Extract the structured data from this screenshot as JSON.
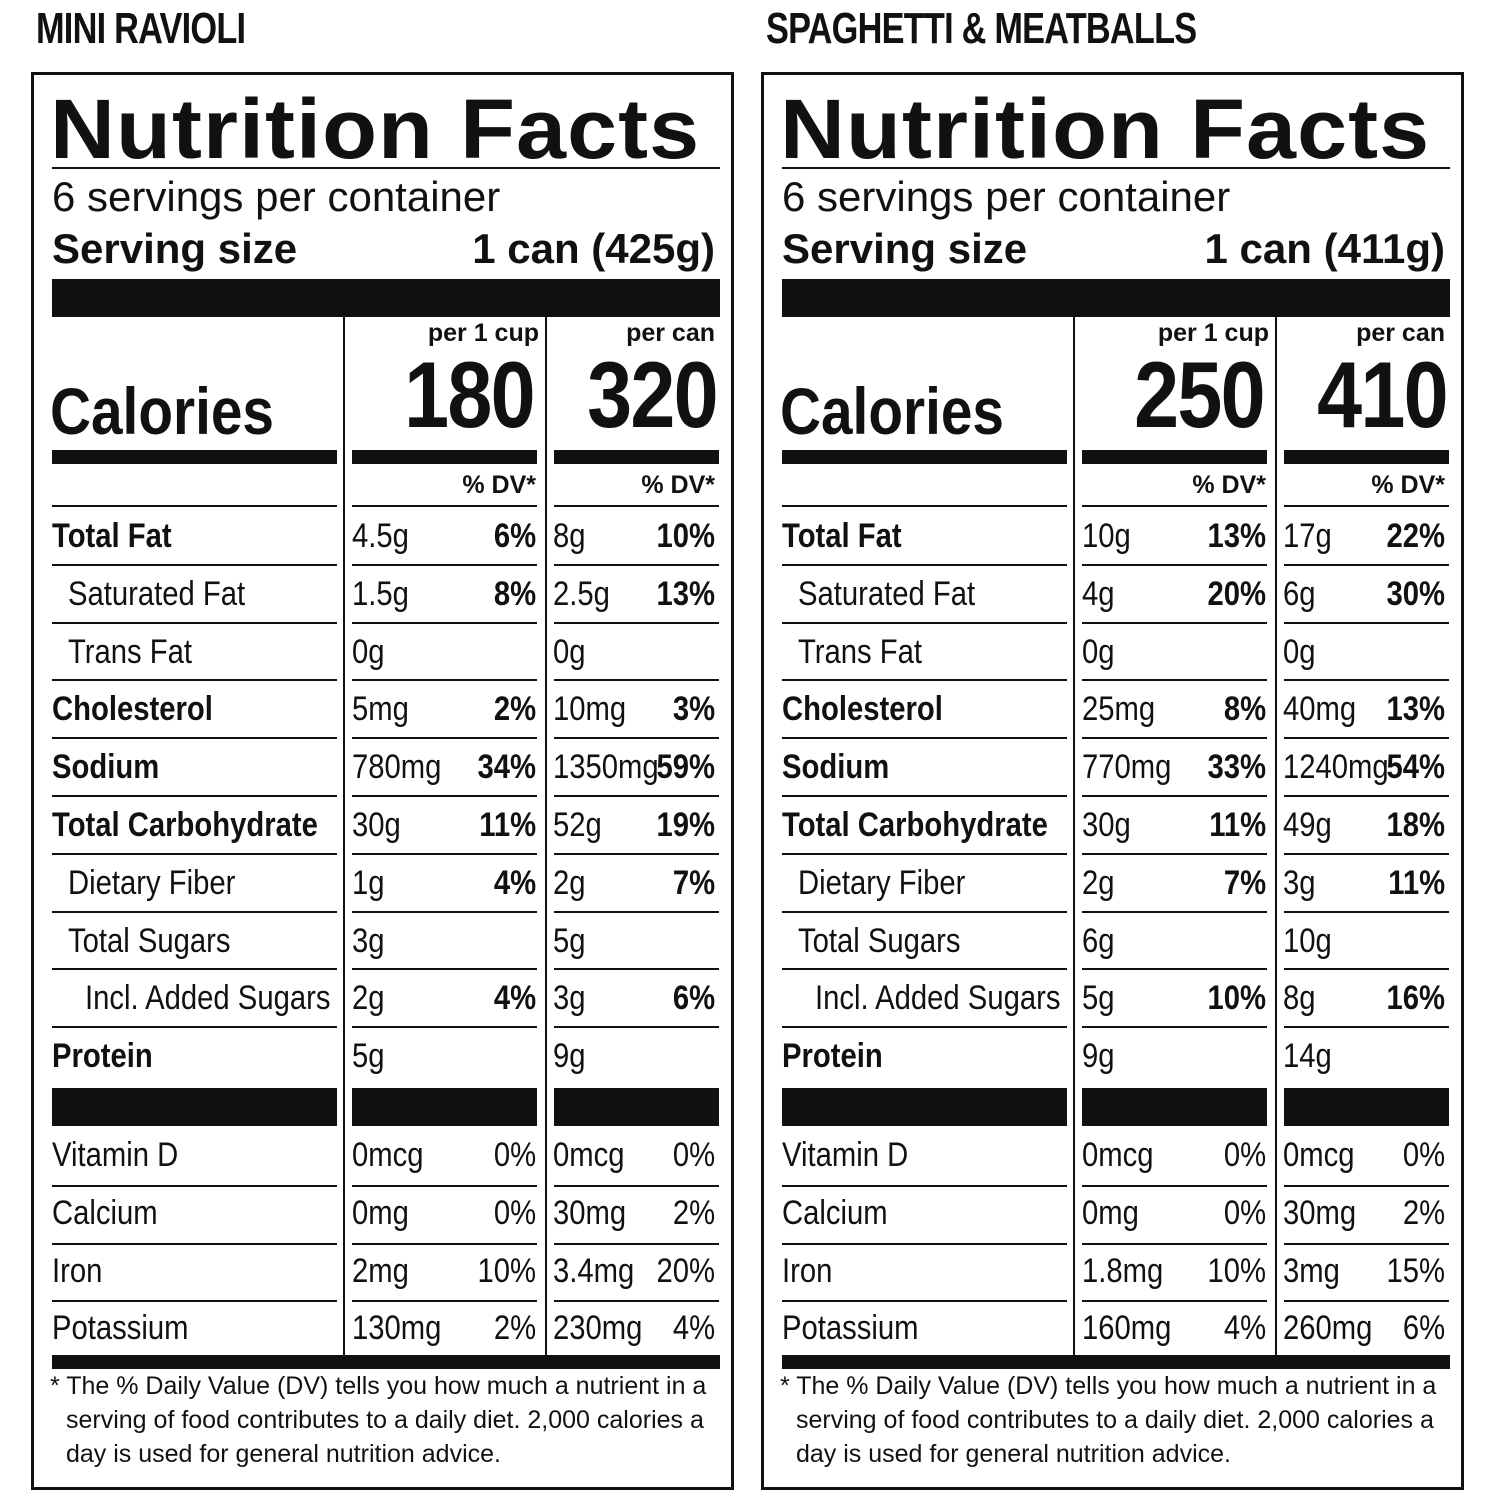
{
  "labels": [
    {
      "product_title": "MINI RAVIOLI",
      "heading": "Nutrition Facts",
      "servings_per_container": "6 servings per container",
      "serving_size_label": "Serving size",
      "serving_size_value": "1 can (425g)",
      "col1_header": "per 1 cup",
      "col2_header": "per can",
      "calories_label": "Calories",
      "calories_col1": "180",
      "calories_col2": "320",
      "dv_header": "% DV*",
      "nutrients": [
        {
          "name": "Total Fat",
          "bold": true,
          "indent": 0,
          "a1": "4.5g",
          "d1": "6%",
          "a2": "8g",
          "d2": "10%"
        },
        {
          "name": "Saturated Fat",
          "bold": false,
          "indent": 1,
          "a1": "1.5g",
          "d1": "8%",
          "a2": "2.5g",
          "d2": "13%"
        },
        {
          "name": "Trans Fat",
          "bold": false,
          "indent": 1,
          "a1": "0g",
          "d1": "",
          "a2": "0g",
          "d2": ""
        },
        {
          "name": "Cholesterol",
          "bold": true,
          "indent": 0,
          "a1": "5mg",
          "d1": "2%",
          "a2": "10mg",
          "d2": "3%"
        },
        {
          "name": "Sodium",
          "bold": true,
          "indent": 0,
          "a1": "780mg",
          "d1": "34%",
          "a2": "1350mg",
          "d2": "59%"
        },
        {
          "name": "Total Carbohydrate",
          "bold": true,
          "indent": 0,
          "a1": "30g",
          "d1": "11%",
          "a2": "52g",
          "d2": "19%"
        },
        {
          "name": "Dietary Fiber",
          "bold": false,
          "indent": 1,
          "a1": "1g",
          "d1": "4%",
          "a2": "2g",
          "d2": "7%"
        },
        {
          "name": "Total Sugars",
          "bold": false,
          "indent": 1,
          "a1": "3g",
          "d1": "",
          "a2": "5g",
          "d2": ""
        },
        {
          "name": "Incl. Added Sugars",
          "bold": false,
          "indent": 2,
          "a1": "2g",
          "d1": "4%",
          "a2": "3g",
          "d2": "6%"
        },
        {
          "name": "Protein",
          "bold": true,
          "indent": 0,
          "a1": "5g",
          "d1": "",
          "a2": "9g",
          "d2": ""
        }
      ],
      "vitamins": [
        {
          "name": "Vitamin D",
          "a1": "0mcg",
          "d1": "0%",
          "a2": "0mcg",
          "d2": "0%"
        },
        {
          "name": "Calcium",
          "a1": "0mg",
          "d1": "0%",
          "a2": "30mg",
          "d2": "2%"
        },
        {
          "name": "Iron",
          "a1": "2mg",
          "d1": "10%",
          "a2": "3.4mg",
          "d2": "20%"
        },
        {
          "name": "Potassium",
          "a1": "130mg",
          "d1": "2%",
          "a2": "230mg",
          "d2": "4%"
        }
      ],
      "footnote": [
        "* The % Daily Value (DV) tells you how much a nutrient in a",
        "serving of food contributes to a daily diet. 2,000 calories a",
        "day is used for general nutrition advice."
      ]
    },
    {
      "product_title": "SPAGHETTI & MEATBALLS",
      "heading": "Nutrition Facts",
      "servings_per_container": "6 servings per container",
      "serving_size_label": "Serving size",
      "serving_size_value": "1 can (411g)",
      "col1_header": "per 1 cup",
      "col2_header": "per can",
      "calories_label": "Calories",
      "calories_col1": "250",
      "calories_col2": "410",
      "dv_header": "% DV*",
      "nutrients": [
        {
          "name": "Total Fat",
          "bold": true,
          "indent": 0,
          "a1": "10g",
          "d1": "13%",
          "a2": "17g",
          "d2": "22%"
        },
        {
          "name": "Saturated Fat",
          "bold": false,
          "indent": 1,
          "a1": "4g",
          "d1": "20%",
          "a2": "6g",
          "d2": "30%"
        },
        {
          "name": "Trans Fat",
          "bold": false,
          "indent": 1,
          "a1": "0g",
          "d1": "",
          "a2": "0g",
          "d2": ""
        },
        {
          "name": "Cholesterol",
          "bold": true,
          "indent": 0,
          "a1": "25mg",
          "d1": "8%",
          "a2": "40mg",
          "d2": "13%"
        },
        {
          "name": "Sodium",
          "bold": true,
          "indent": 0,
          "a1": "770mg",
          "d1": "33%",
          "a2": "1240mg",
          "d2": "54%"
        },
        {
          "name": "Total Carbohydrate",
          "bold": true,
          "indent": 0,
          "a1": "30g",
          "d1": "11%",
          "a2": "49g",
          "d2": "18%"
        },
        {
          "name": "Dietary Fiber",
          "bold": false,
          "indent": 1,
          "a1": "2g",
          "d1": "7%",
          "a2": "3g",
          "d2": "11%"
        },
        {
          "name": "Total Sugars",
          "bold": false,
          "indent": 1,
          "a1": "6g",
          "d1": "",
          "a2": "10g",
          "d2": ""
        },
        {
          "name": "Incl. Added Sugars",
          "bold": false,
          "indent": 2,
          "a1": "5g",
          "d1": "10%",
          "a2": "8g",
          "d2": "16%"
        },
        {
          "name": "Protein",
          "bold": true,
          "indent": 0,
          "a1": "9g",
          "d1": "",
          "a2": "14g",
          "d2": ""
        }
      ],
      "vitamins": [
        {
          "name": "Vitamin D",
          "a1": "0mcg",
          "d1": "0%",
          "a2": "0mcg",
          "d2": "0%"
        },
        {
          "name": "Calcium",
          "a1": "0mg",
          "d1": "0%",
          "a2": "30mg",
          "d2": "2%"
        },
        {
          "name": "Iron",
          "a1": "1.8mg",
          "d1": "10%",
          "a2": "3mg",
          "d2": "15%"
        },
        {
          "name": "Potassium",
          "a1": "160mg",
          "d1": "4%",
          "a2": "260mg",
          "d2": "6%"
        }
      ],
      "footnote": [
        "* The % Daily Value (DV) tells you how much a nutrient in a",
        "serving of food contributes to a daily diet. 2,000 calories a",
        "day is used for general nutrition advice."
      ]
    }
  ]
}
